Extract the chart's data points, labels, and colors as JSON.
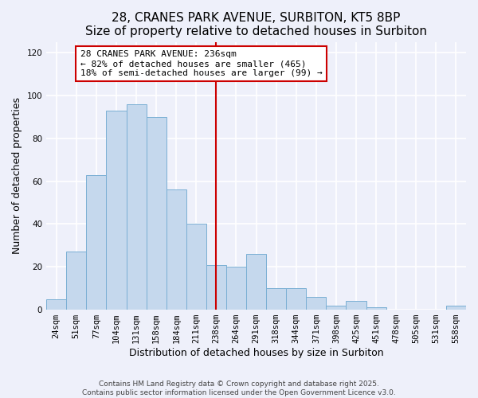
{
  "title": "28, CRANES PARK AVENUE, SURBITON, KT5 8BP",
  "subtitle": "Size of property relative to detached houses in Surbiton",
  "xlabel": "Distribution of detached houses by size in Surbiton",
  "ylabel": "Number of detached properties",
  "bar_color": "#c5d8ed",
  "bar_edgecolor": "#7aafd4",
  "categories": [
    "24sqm",
    "51sqm",
    "77sqm",
    "104sqm",
    "131sqm",
    "158sqm",
    "184sqm",
    "211sqm",
    "238sqm",
    "264sqm",
    "291sqm",
    "318sqm",
    "344sqm",
    "371sqm",
    "398sqm",
    "425sqm",
    "451sqm",
    "478sqm",
    "505sqm",
    "531sqm",
    "558sqm"
  ],
  "values": [
    5,
    27,
    63,
    93,
    96,
    90,
    56,
    40,
    21,
    20,
    26,
    10,
    10,
    6,
    2,
    4,
    1,
    0,
    0,
    0,
    2
  ],
  "vline_x": 8,
  "vline_color": "#cc0000",
  "annotation_title": "28 CRANES PARK AVENUE: 236sqm",
  "annotation_line1": "← 82% of detached houses are smaller (465)",
  "annotation_line2": "18% of semi-detached houses are larger (99) →",
  "ylim": [
    0,
    125
  ],
  "yticks": [
    0,
    20,
    40,
    60,
    80,
    100,
    120
  ],
  "footer1": "Contains HM Land Registry data © Crown copyright and database right 2025.",
  "footer2": "Contains public sector information licensed under the Open Government Licence v3.0.",
  "background_color": "#eef0fa",
  "grid_color": "#ffffff",
  "title_fontsize": 11,
  "subtitle_fontsize": 9.5,
  "tick_fontsize": 7.5,
  "label_fontsize": 9,
  "footer_fontsize": 6.5
}
